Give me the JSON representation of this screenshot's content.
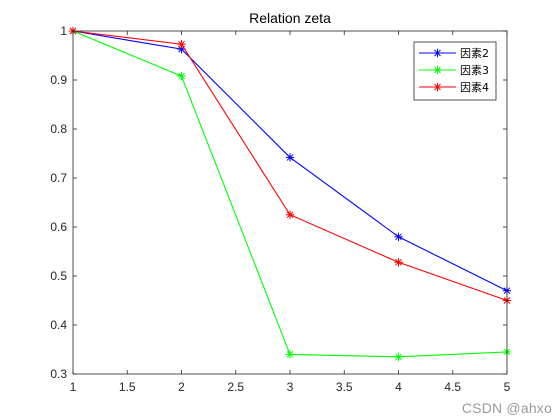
{
  "chart_data": {
    "type": "line",
    "title": "Relation zeta",
    "xlabel": "",
    "ylabel": "",
    "xlim": [
      1,
      5
    ],
    "ylim": [
      0.3,
      1
    ],
    "x": [
      1,
      2,
      3,
      4,
      5
    ],
    "xticks": [
      "1",
      "1.5",
      "2",
      "2.5",
      "3",
      "3.5",
      "4",
      "4.5",
      "5"
    ],
    "yticks": [
      "0.3",
      "0.4",
      "0.5",
      "0.6",
      "0.7",
      "0.8",
      "0.9",
      "1"
    ],
    "grid": false,
    "legend_position": "top-right",
    "series": [
      {
        "name": "因素2",
        "color": "#0000ff",
        "marker": "*",
        "values": [
          1.0,
          0.963,
          0.742,
          0.58,
          0.47
        ]
      },
      {
        "name": "因素3",
        "color": "#00ff00",
        "marker": "*",
        "values": [
          1.0,
          0.908,
          0.34,
          0.335,
          0.345
        ]
      },
      {
        "name": "因素4",
        "color": "#ff0000",
        "marker": "*",
        "values": [
          1.0,
          0.973,
          0.625,
          0.528,
          0.45
        ]
      }
    ]
  },
  "watermark": "CSDN @ahxo"
}
